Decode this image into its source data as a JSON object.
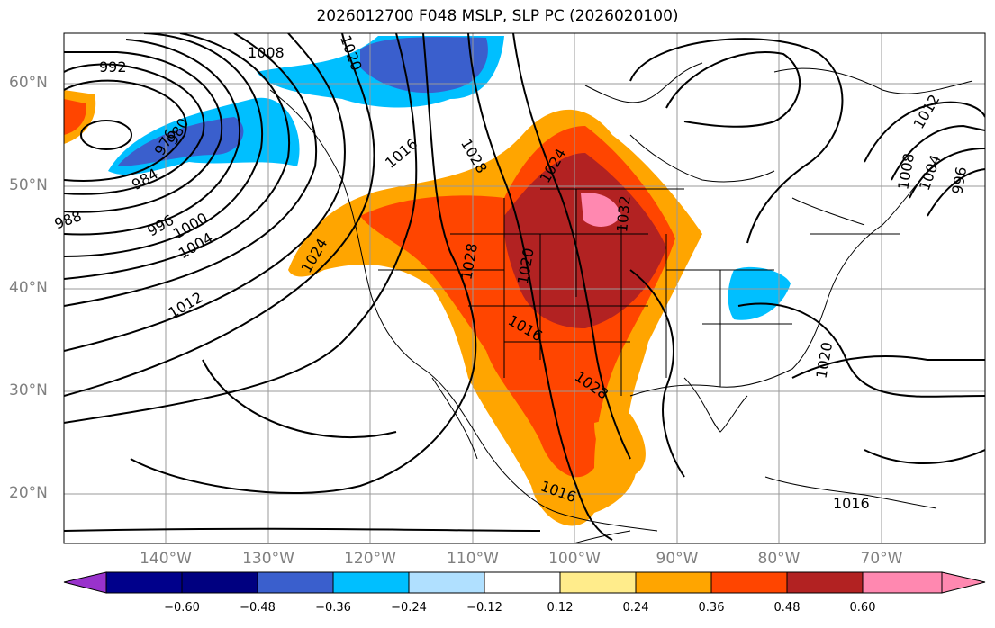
{
  "title": "2026012700 F048 MSLP, SLP PC (2026020100)",
  "lat_labels": [
    "60°N",
    "50°N",
    "40°N",
    "30°N",
    "20°N"
  ],
  "lon_labels": [
    "140°W",
    "130°W",
    "120°W",
    "110°W",
    "100°W",
    "90°W",
    "80°W",
    "70°W"
  ],
  "contour_labels": [
    "992",
    "1008",
    "976",
    "980",
    "984",
    "988",
    "996",
    "1000",
    "1004",
    "1012",
    "1016",
    "1020",
    "1024",
    "1028",
    "1032",
    "1016",
    "1028",
    "1020",
    "1024",
    "1028",
    "1016",
    "1020",
    "1012",
    "1008",
    "1004",
    "996",
    "1016"
  ],
  "colorbar": {
    "ticks": [
      "−0.60",
      "−0.48",
      "−0.36",
      "−0.24",
      "−0.12",
      "0.12",
      "0.24",
      "0.36",
      "0.48",
      "0.60"
    ],
    "colors": [
      "#9932cc",
      "#00008b",
      "#3a5fcd",
      "#00bfff",
      "#b0e0ff",
      "#ffffff",
      "#ffec8b",
      "#ffa500",
      "#ff4500",
      "#b22222",
      "#ff88b0"
    ]
  }
}
